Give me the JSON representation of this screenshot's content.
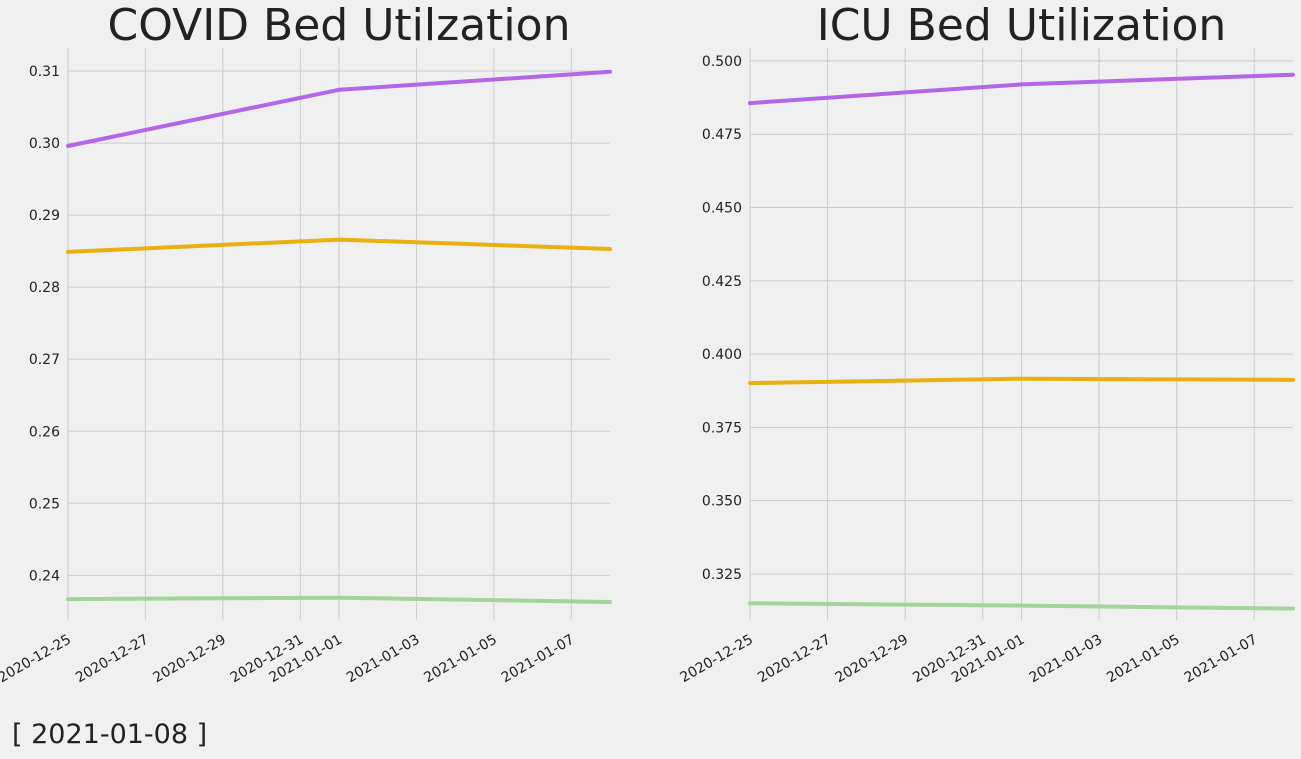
{
  "footer_date": "[ 2021-01-08 ]",
  "colors": {
    "background": "#f0f0f0",
    "grid": "#cbcbcb",
    "text": "#222222",
    "purple": "#b266e8",
    "gold": "#eab010",
    "green": "#a3d49b"
  },
  "chart_data": [
    {
      "type": "line",
      "title": "COVID Bed Utilzation",
      "xlabel": "",
      "ylabel": "",
      "x_type": "date",
      "x_tick_labels": [
        "2020-12-25",
        "2020-12-27",
        "2020-12-29",
        "2020-12-31",
        "2021-01-01",
        "2021-01-03",
        "2021-01-05",
        "2021-01-07"
      ],
      "xlim": [
        "2020-12-25",
        "2021-01-08"
      ],
      "y_ticks": [
        0.24,
        0.25,
        0.26,
        0.27,
        0.28,
        0.29,
        0.3,
        0.31
      ],
      "y_tick_labels": [
        "0.24",
        "0.25",
        "0.26",
        "0.27",
        "0.28",
        "0.29",
        "0.30",
        "0.31"
      ],
      "ylim": [
        0.2338,
        0.3132
      ],
      "grid": true,
      "legend": "none",
      "series": [
        {
          "color": "#b266e8",
          "x": [
            "2020-12-25",
            "2021-01-01",
            "2021-01-08"
          ],
          "values": [
            0.2996,
            0.3074,
            0.3099
          ]
        },
        {
          "color": "#eab010",
          "x": [
            "2020-12-25",
            "2021-01-01",
            "2021-01-08"
          ],
          "values": [
            0.2849,
            0.2866,
            0.2853
          ]
        },
        {
          "color": "#a3d49b",
          "x": [
            "2020-12-25",
            "2021-01-01",
            "2021-01-08"
          ],
          "values": [
            0.2367,
            0.2369,
            0.2363
          ]
        }
      ]
    },
    {
      "type": "line",
      "title": "ICU Bed Utilization",
      "xlabel": "",
      "ylabel": "",
      "x_type": "date",
      "x_tick_labels": [
        "2020-12-25",
        "2020-12-27",
        "2020-12-29",
        "2020-12-31",
        "2021-01-01",
        "2021-01-03",
        "2021-01-05",
        "2021-01-07"
      ],
      "xlim": [
        "2020-12-25",
        "2021-01-08"
      ],
      "y_ticks": [
        0.325,
        0.35,
        0.375,
        0.4,
        0.425,
        0.45,
        0.475,
        0.5
      ],
      "y_tick_labels": [
        "0.325",
        "0.350",
        "0.375",
        "0.400",
        "0.425",
        "0.450",
        "0.475",
        "0.500"
      ],
      "ylim": [
        0.3093,
        0.5044
      ],
      "grid": true,
      "legend": "none",
      "series": [
        {
          "color": "#b266e8",
          "x": [
            "2020-12-25",
            "2021-01-01",
            "2021-01-08"
          ],
          "values": [
            0.4856,
            0.492,
            0.4953
          ]
        },
        {
          "color": "#eab010",
          "x": [
            "2020-12-25",
            "2021-01-01",
            "2021-01-08"
          ],
          "values": [
            0.3901,
            0.3916,
            0.3912
          ]
        },
        {
          "color": "#a3d49b",
          "x": [
            "2020-12-25",
            "2021-01-01",
            "2021-01-08"
          ],
          "values": [
            0.315,
            0.3142,
            0.3132
          ]
        }
      ]
    }
  ]
}
